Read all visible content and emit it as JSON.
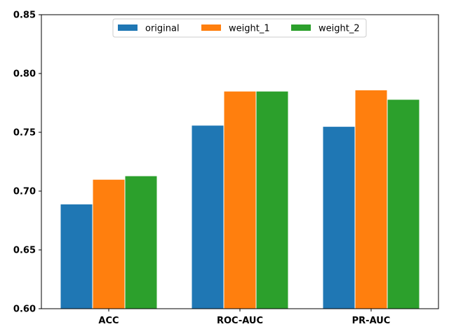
{
  "chart_data": {
    "type": "bar",
    "categories": [
      "ACC",
      "ROC-AUC",
      "PR-AUC"
    ],
    "series": [
      {
        "name": "original",
        "values": [
          0.689,
          0.756,
          0.755
        ],
        "color": "#1f77b4"
      },
      {
        "name": "weight_1",
        "values": [
          0.71,
          0.785,
          0.786
        ],
        "color": "#ff7f0e"
      },
      {
        "name": "weight_2",
        "values": [
          0.713,
          0.785,
          0.778
        ],
        "color": "#2ca02c"
      }
    ],
    "title": "",
    "xlabel": "",
    "ylabel": "",
    "ylim": [
      0.6,
      0.85
    ],
    "yticks": [
      "0.60",
      "0.65",
      "0.70",
      "0.75",
      "0.80",
      "0.85"
    ],
    "grid": false,
    "legend_position": "top-center"
  }
}
